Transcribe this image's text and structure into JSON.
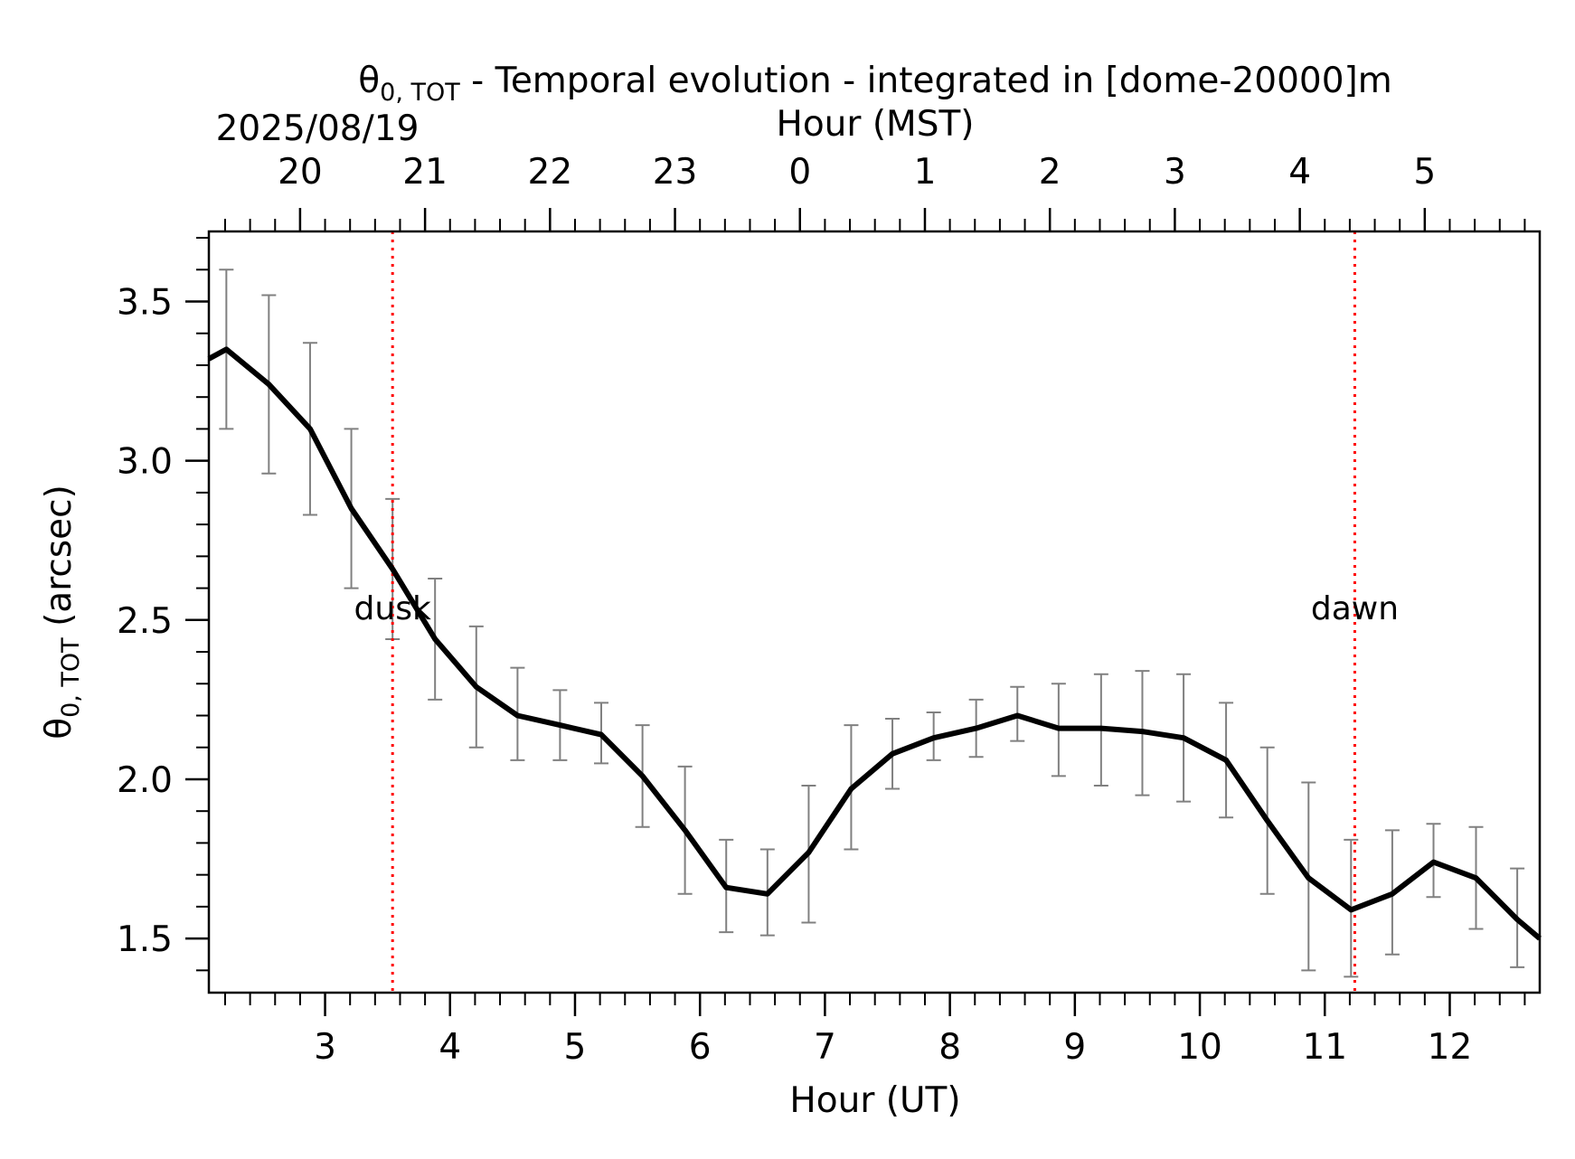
{
  "chart_data": {
    "type": "line",
    "title_parts": {
      "symbol": "θ",
      "subscript": "0, TOT",
      "rest": " - Temporal evolution - integrated in [dome-20000]m"
    },
    "date": "2025/08/19",
    "xlabel": "Hour (UT)",
    "x2label": "Hour (MST)",
    "ylabel_parts": {
      "symbol": "θ",
      "subscript": "0, TOT",
      "rest": " (arcsec)"
    },
    "xlim": [
      2.07,
      12.72
    ],
    "ylim": [
      1.33,
      3.72
    ],
    "x_ticks": [
      3,
      4,
      5,
      6,
      7,
      8,
      9,
      10,
      11,
      12
    ],
    "x_tick_labels": [
      "3",
      "4",
      "5",
      "6",
      "7",
      "8",
      "9",
      "10",
      "11",
      "12"
    ],
    "x2_ticks": [
      2.8,
      3.8,
      4.8,
      5.8,
      6.8,
      7.8,
      8.8,
      9.8,
      10.8,
      11.8
    ],
    "x2_tick_labels": [
      "20",
      "21",
      "22",
      "23",
      "0",
      "1",
      "2",
      "3",
      "4",
      "5"
    ],
    "y_ticks": [
      1.5,
      2.0,
      2.5,
      3.0,
      3.5
    ],
    "y_tick_labels": [
      "1.5",
      "2.0",
      "2.5",
      "3.0",
      "3.5"
    ],
    "grid": false,
    "series": [
      {
        "color": "#000000",
        "x": [
          2.07,
          2.21,
          2.55,
          2.88,
          3.21,
          3.54,
          3.88,
          4.21,
          4.54,
          4.88,
          5.21,
          5.54,
          5.88,
          6.21,
          6.54,
          6.87,
          7.21,
          7.54,
          7.87,
          8.21,
          8.54,
          8.87,
          9.21,
          9.54,
          9.87,
          10.21,
          10.54,
          10.87,
          11.21,
          11.54,
          11.87,
          12.21,
          12.54,
          12.72
        ],
        "y": [
          3.32,
          3.35,
          3.24,
          3.1,
          2.85,
          2.66,
          2.44,
          2.29,
          2.2,
          2.17,
          2.14,
          2.01,
          1.84,
          1.66,
          1.64,
          1.77,
          1.97,
          2.08,
          2.13,
          2.16,
          2.2,
          2.16,
          2.16,
          2.15,
          2.13,
          2.06,
          1.87,
          1.69,
          1.59,
          1.64,
          1.74,
          1.69,
          1.56,
          1.5
        ],
        "error_x": [
          2.21,
          2.55,
          2.88,
          3.21,
          3.54,
          3.88,
          4.21,
          4.54,
          4.88,
          5.21,
          5.54,
          5.88,
          6.21,
          6.54,
          6.87,
          7.21,
          7.54,
          7.87,
          8.21,
          8.54,
          8.87,
          9.21,
          9.54,
          9.87,
          10.21,
          10.54,
          10.87,
          11.21,
          11.54,
          11.87,
          12.21,
          12.54
        ],
        "error_low": [
          3.1,
          2.96,
          2.83,
          2.6,
          2.44,
          2.25,
          2.1,
          2.06,
          2.06,
          2.05,
          1.85,
          1.64,
          1.52,
          1.51,
          1.55,
          1.78,
          1.97,
          2.06,
          2.07,
          2.12,
          2.01,
          1.98,
          1.95,
          1.93,
          1.88,
          1.64,
          1.4,
          1.38,
          1.45,
          1.63,
          1.53,
          1.41
        ],
        "error_high": [
          3.6,
          3.52,
          3.37,
          3.1,
          2.88,
          2.63,
          2.48,
          2.35,
          2.28,
          2.24,
          2.17,
          2.04,
          1.81,
          1.78,
          1.98,
          2.17,
          2.19,
          2.21,
          2.25,
          2.29,
          2.3,
          2.33,
          2.34,
          2.33,
          2.24,
          2.1,
          1.99,
          1.81,
          1.84,
          1.86,
          1.85,
          1.72
        ],
        "error_color": "#808080"
      }
    ],
    "events": [
      {
        "label": "dusk",
        "x": 3.54,
        "y": 2.52,
        "color": "#ff0000"
      },
      {
        "label": "dawn",
        "x": 11.24,
        "y": 2.52,
        "color": "#ff0000"
      }
    ]
  }
}
